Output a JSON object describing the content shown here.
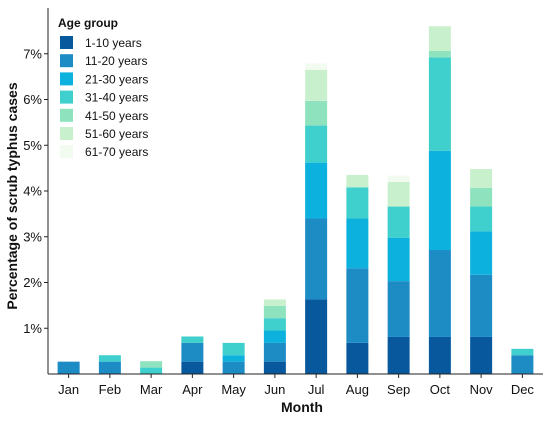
{
  "chart_data": {
    "type": "bar",
    "stacked": true,
    "xlabel": "Month",
    "ylabel": "Percentage of scrub typhus cases",
    "ylim": [
      0,
      8
    ],
    "yticks": [
      1,
      2,
      3,
      4,
      5,
      6,
      7
    ],
    "ytick_labels": [
      "1%",
      "2%",
      "3%",
      "4%",
      "5%",
      "6%",
      "7%"
    ],
    "categories": [
      "Jan",
      "Feb",
      "Mar",
      "Apr",
      "May",
      "Jun",
      "Jul",
      "Aug",
      "Sep",
      "Oct",
      "Nov",
      "Dec"
    ],
    "legend": {
      "title": "Age group",
      "placement": "top-left"
    },
    "grid": false,
    "series": [
      {
        "name": "1-10 years",
        "color": "#08589e",
        "values": [
          0,
          0,
          0,
          0.27,
          0,
          0.27,
          1.63,
          0.68,
          0.81,
          0.81,
          0.81,
          0
        ]
      },
      {
        "name": "11-20 years",
        "color": "#1d8bc4",
        "values": [
          0.27,
          0.27,
          0,
          0.41,
          0.27,
          0.41,
          1.77,
          1.63,
          1.22,
          1.9,
          1.36,
          0.41
        ]
      },
      {
        "name": "21-30 years",
        "color": "#0cb2dd",
        "values": [
          0,
          0,
          0,
          0,
          0.14,
          0.27,
          1.22,
          1.09,
          0.95,
          2.17,
          0.95,
          0
        ]
      },
      {
        "name": "31-40 years",
        "color": "#3fcfcc",
        "values": [
          0,
          0.14,
          0.14,
          0.14,
          0.27,
          0.27,
          0.81,
          0.68,
          0.68,
          2.04,
          0.54,
          0.14
        ]
      },
      {
        "name": "41-50 years",
        "color": "#8ee2bd",
        "values": [
          0,
          0,
          0.14,
          0,
          0,
          0.27,
          0.54,
          0,
          0,
          0.14,
          0.41,
          0
        ]
      },
      {
        "name": "51-60 years",
        "color": "#c8f0cd",
        "values": [
          0,
          0,
          0,
          0,
          0,
          0.14,
          0.68,
          0.27,
          0.54,
          0.54,
          0.41,
          0
        ]
      },
      {
        "name": "61-70 years",
        "color": "#f2fbef",
        "values": [
          0,
          0,
          0,
          0,
          0,
          0,
          0.14,
          0,
          0.14,
          0,
          0,
          0
        ]
      }
    ]
  }
}
